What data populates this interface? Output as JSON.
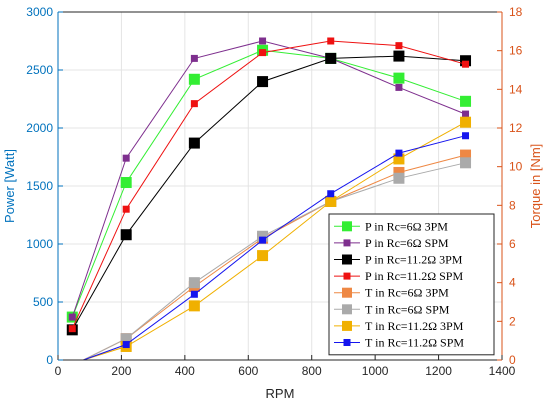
{
  "chart_data": {
    "type": "line",
    "xlabel": "RPM",
    "ylabel_left": "Power [Watt]",
    "ylabel_right": "Torque in [Nm]",
    "xlim": [
      0,
      1400
    ],
    "ylim_left": [
      0,
      3000
    ],
    "ylim_right": [
      0,
      18
    ],
    "xticks": [
      0,
      200,
      400,
      600,
      800,
      1000,
      1200,
      1400
    ],
    "yticks_left": [
      0,
      500,
      1000,
      1500,
      2000,
      2500,
      3000
    ],
    "yticks_right": [
      0,
      2,
      4,
      6,
      8,
      10,
      12,
      14,
      16,
      18
    ],
    "grid": true,
    "legend_position": "lower-right",
    "colors": {
      "left_axis": "#0072BD",
      "right_axis": "#D95319"
    },
    "series": [
      {
        "name": "P in Rc=6Ω 3PM",
        "axis": "left",
        "color": "#33ee33",
        "marker_size": 11,
        "x": [
          45,
          215,
          430,
          645,
          860,
          1075,
          1285
        ],
        "y": [
          370,
          1530,
          2420,
          2670,
          2600,
          2430,
          2230
        ]
      },
      {
        "name": "P in Rc=6Ω SPM",
        "axis": "left",
        "color": "#7e2f8e",
        "marker_size": 7,
        "x": [
          45,
          215,
          430,
          645,
          860,
          1075,
          1285
        ],
        "y": [
          370,
          1740,
          2600,
          2750,
          2600,
          2350,
          2120
        ]
      },
      {
        "name": "P in Rc=11.2Ω 3PM",
        "axis": "left",
        "color": "#000000",
        "marker_size": 11,
        "x": [
          45,
          215,
          430,
          645,
          860,
          1075,
          1285
        ],
        "y": [
          260,
          1080,
          1870,
          2400,
          2600,
          2620,
          2580
        ]
      },
      {
        "name": "P in Rc=11.2Ω SPM",
        "axis": "left",
        "color": "#ee1111",
        "marker_size": 7,
        "x": [
          45,
          215,
          430,
          645,
          860,
          1075,
          1285
        ],
        "y": [
          270,
          1300,
          2210,
          2650,
          2750,
          2710,
          2550
        ]
      },
      {
        "name": "T in Rc=6Ω 3PM",
        "axis": "right",
        "color": "#ee8844",
        "marker_size": 11,
        "x": [
          80,
          215,
          430,
          645,
          860,
          1075,
          1285
        ],
        "y": [
          0,
          1.1,
          3.8,
          6.3,
          8.2,
          9.7,
          10.6
        ]
      },
      {
        "name": "T in Rc=6Ω SPM",
        "axis": "right",
        "color": "#aaaaaa",
        "marker_size": 11,
        "x": [
          80,
          215,
          430,
          645,
          860,
          1075,
          1285
        ],
        "y": [
          0,
          1.1,
          4.0,
          6.4,
          8.2,
          9.4,
          10.2
        ]
      },
      {
        "name": "T in Rc=11.2Ω 3PM",
        "axis": "right",
        "color": "#f0b000",
        "marker_size": 11,
        "x": [
          80,
          215,
          430,
          645,
          860,
          1075,
          1285
        ],
        "y": [
          0,
          0.7,
          2.8,
          5.4,
          8.2,
          10.4,
          12.3
        ]
      },
      {
        "name": "T in Rc=11.2Ω SPM",
        "axis": "right",
        "color": "#1515ee",
        "marker_size": 7,
        "x": [
          80,
          215,
          430,
          645,
          860,
          1075,
          1285
        ],
        "y": [
          0,
          0.8,
          3.4,
          6.2,
          8.6,
          10.7,
          11.6
        ]
      }
    ]
  }
}
